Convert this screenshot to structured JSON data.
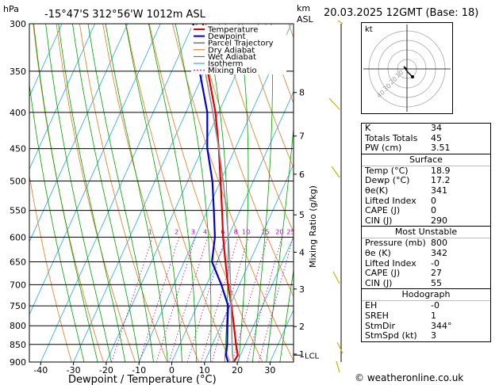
{
  "header": {
    "unit_left": "hPa",
    "location": "-15°47'S 312°56'W 1012m ASL",
    "unit_right_1": "km",
    "unit_right_2": "ASL",
    "date": "20.03.2025 12GMT (Base: 18)"
  },
  "chart_data": {
    "type": "line",
    "title": "-15°47'S 312°56'W 1012m ASL",
    "xlabel": "Dewpoint / Temperature (°C)",
    "ylabel": "hPa",
    "secondary_ylabel": "Mixing Ratio (g/kg)",
    "x_ticks": [
      -40,
      -30,
      -20,
      -10,
      0,
      10,
      20,
      30
    ],
    "pressure_levels": [
      300,
      350,
      400,
      450,
      500,
      550,
      600,
      650,
      700,
      750,
      800,
      850,
      900
    ],
    "km_ticks": [
      {
        "label": "8",
        "p": 375
      },
      {
        "label": "7",
        "p": 432
      },
      {
        "label": "6",
        "p": 489
      },
      {
        "label": "5",
        "p": 558
      },
      {
        "label": "4",
        "p": 630
      },
      {
        "label": "3",
        "p": 710
      },
      {
        "label": "2",
        "p": 802
      },
      {
        "label": "1",
        "p": 877
      }
    ],
    "lcl_label": "LCL",
    "lcl_p": 880,
    "mixing_ratio_labels": [
      "1",
      "2",
      "3",
      "4",
      "6",
      "8",
      "10",
      "15",
      "20",
      "25"
    ],
    "mixing_ratio_values": [
      1,
      2,
      3,
      4,
      6,
      8,
      10,
      15,
      20,
      25
    ],
    "legend": [
      "Temperature",
      "Dewpoint",
      "Parcel Trajectory",
      "Dry Adiabat",
      "Wet Adiabat",
      "Isotherm",
      "Mixing Ratio"
    ],
    "legend_colors": [
      "#e00000",
      "#0000c8",
      "#909090",
      "#d07000",
      "#00a000",
      "#00a0e0",
      "#a000a0"
    ],
    "series": [
      {
        "name": "Temperature",
        "points": [
          [
            900,
            18.9
          ],
          [
            880,
            19.2
          ],
          [
            850,
            17.2
          ],
          [
            800,
            14.0
          ],
          [
            750,
            10.5
          ],
          [
            700,
            6.5
          ],
          [
            650,
            2.6
          ],
          [
            600,
            -1.5
          ],
          [
            550,
            -5.5
          ],
          [
            500,
            -10.0
          ],
          [
            450,
            -15.0
          ],
          [
            400,
            -21.0
          ],
          [
            350,
            -29.0
          ],
          [
            300,
            -37.0
          ]
        ]
      },
      {
        "name": "Dewpoint",
        "points": [
          [
            900,
            17.2
          ],
          [
            880,
            15.6
          ],
          [
            850,
            14.5
          ],
          [
            800,
            12.0
          ],
          [
            750,
            9.5
          ],
          [
            700,
            4.5
          ],
          [
            650,
            -1.5
          ],
          [
            600,
            -4.0
          ],
          [
            550,
            -8.0
          ],
          [
            500,
            -12.5
          ],
          [
            450,
            -18.5
          ],
          [
            400,
            -23.5
          ],
          [
            350,
            -31.5
          ],
          [
            300,
            -40.0
          ]
        ]
      },
      {
        "name": "Parcel Trajectory",
        "points": [
          [
            900,
            18.9
          ],
          [
            880,
            17.6
          ],
          [
            850,
            16.0
          ],
          [
            800,
            13.3
          ],
          [
            750,
            10.4
          ],
          [
            700,
            7.3
          ],
          [
            650,
            3.9
          ],
          [
            600,
            0.1
          ],
          [
            550,
            -4.2
          ],
          [
            500,
            -9.2
          ],
          [
            450,
            -15.0
          ],
          [
            400,
            -21.8
          ],
          [
            350,
            -29.8
          ],
          [
            300,
            -39.0
          ]
        ]
      }
    ]
  },
  "hodograph": {
    "label": "kt",
    "ring_labels": [
      "10",
      "20",
      "30",
      "40"
    ]
  },
  "indices": {
    "rows": [
      {
        "label": "K",
        "value": "34"
      },
      {
        "label": "Totals Totals",
        "value": "45"
      },
      {
        "label": "PW (cm)",
        "value": "3.51"
      }
    ]
  },
  "surface": {
    "title": "Surface",
    "rows": [
      {
        "label": "Temp (°C)",
        "value": "18.9"
      },
      {
        "label": "Dewp (°C)",
        "value": "17.2"
      },
      {
        "label": "θe(K)",
        "value": "341"
      },
      {
        "label": "Lifted Index",
        "value": "0"
      },
      {
        "label": "CAPE (J)",
        "value": "0"
      },
      {
        "label": "CIN (J)",
        "value": "290"
      }
    ]
  },
  "most_unstable": {
    "title": "Most Unstable",
    "rows": [
      {
        "label": "Pressure (mb)",
        "value": "800"
      },
      {
        "label": "θe (K)",
        "value": "342"
      },
      {
        "label": "Lifted Index",
        "value": "-0"
      },
      {
        "label": "CAPE (J)",
        "value": "27"
      },
      {
        "label": "CIN (J)",
        "value": "55"
      }
    ]
  },
  "hodograph_table": {
    "title": "Hodograph",
    "rows": [
      {
        "label": "EH",
        "value": "-0"
      },
      {
        "label": "SREH",
        "value": "1"
      },
      {
        "label": "StmDir",
        "value": "344°"
      },
      {
        "label": "StmSpd (kt)",
        "value": "3"
      }
    ]
  },
  "footer": {
    "copyright": "© weatheronline.co.uk"
  }
}
